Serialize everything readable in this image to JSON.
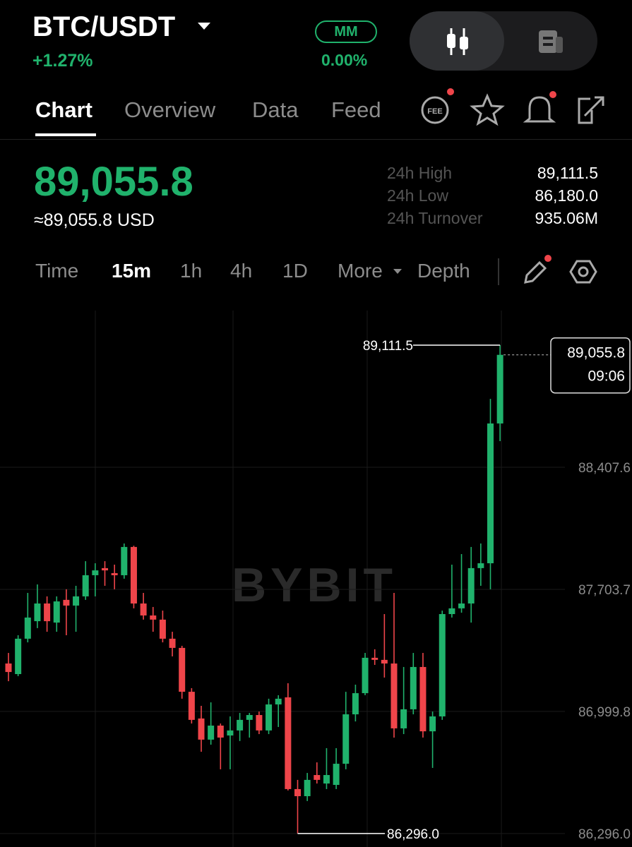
{
  "header": {
    "pair": "BTC/USDT",
    "change": "+1.27%",
    "mm": "MM",
    "mm_value": "0.00%"
  },
  "tabs": [
    "Chart",
    "Overview",
    "Data",
    "Feed"
  ],
  "price": "89,055.8",
  "price_usd": "≈89,055.8 USD",
  "stats": [
    {
      "label": "24h High",
      "value": "89,111.5"
    },
    {
      "label": "24h Low",
      "value": "86,180.0"
    },
    {
      "label": "24h Turnover",
      "value": "935.06M"
    }
  ],
  "intervals": [
    "Time",
    "15m",
    "1h",
    "4h",
    "1D",
    "More",
    "Depth"
  ],
  "chart_data": {
    "type": "candlestick",
    "watermark": "BYBIT",
    "up_color": "#20b26c",
    "down_color": "#ef454a",
    "ylim": [
      86218,
      89311
    ],
    "yticks": [
      {
        "value": 88407.6,
        "label": "88,407.6"
      },
      {
        "value": 87703.7,
        "label": "87,703.7"
      },
      {
        "value": 86999.8,
        "label": "86,999.8"
      },
      {
        "value": 86296.0,
        "label": "86,296.0"
      }
    ],
    "open": [
      87276,
      87215,
      87419,
      87520,
      87622,
      87512,
      87643,
      87610,
      87663,
      87785,
      87826,
      87797,
      87785,
      87948,
      87622,
      87553,
      87529,
      87419,
      87366,
      87113,
      86959,
      86837,
      86918,
      86861,
      86890,
      86951,
      86979,
      86890,
      87040,
      87081,
      86552,
      86511,
      86633,
      86584,
      86576,
      86698,
      86983,
      87105,
      87309,
      87297,
      87276,
      86902,
      87012,
      87256,
      86885,
      86971,
      87561,
      87594,
      87622,
      87826,
      87854,
      88660
    ],
    "high": [
      87337,
      87439,
      87683,
      87732,
      87663,
      87663,
      87704,
      87724,
      87866,
      87854,
      87866,
      87846,
      87968,
      87955,
      87683,
      87602,
      87581,
      87459,
      87378,
      87134,
      87032,
      87052,
      86930,
      86971,
      86991,
      86991,
      86999,
      87073,
      87093,
      87162,
      86605,
      86645,
      86706,
      86788,
      86788,
      87113,
      87154,
      87337,
      87358,
      87561,
      87683,
      87256,
      87337,
      87337,
      86999,
      87581,
      87846,
      87907,
      87948,
      87968,
      88802,
      89111.5
    ],
    "low": [
      87174,
      87203,
      87398,
      87480,
      87459,
      87459,
      87439,
      87459,
      87643,
      87663,
      87724,
      87704,
      87765,
      87594,
      87529,
      87459,
      87398,
      87317,
      87073,
      86930,
      86767,
      86808,
      86666,
      86666,
      86829,
      86849,
      86869,
      86869,
      86910,
      86544,
      86296.0,
      86483,
      86584,
      86552,
      86552,
      86666,
      86942,
      87093,
      87268,
      87195,
      86849,
      86869,
      86983,
      86849,
      86674,
      86951,
      87541,
      87569,
      87512,
      87724,
      87704,
      88558
    ],
    "close": [
      87227,
      87419,
      87541,
      87622,
      87520,
      87634,
      87610,
      87663,
      87785,
      87813,
      87813,
      87785,
      87948,
      87622,
      87553,
      87529,
      87419,
      87366,
      87113,
      86951,
      86837,
      86918,
      86849,
      86890,
      86951,
      86979,
      86890,
      87040,
      87073,
      86552,
      86511,
      86605,
      86605,
      86633,
      86698,
      86983,
      87105,
      87309,
      87297,
      87276,
      86902,
      87012,
      87256,
      86885,
      86971,
      87561,
      87594,
      87622,
      87826,
      87854,
      88660,
      89055.8
    ],
    "high_annotation": {
      "value": 89111.5,
      "label": "89,111.5"
    },
    "low_annotation": {
      "value": 86296.0,
      "label": "86,296.0"
    },
    "last_price": {
      "value": 89055.8,
      "label": "89,055.8"
    },
    "last_time": "09:06"
  }
}
